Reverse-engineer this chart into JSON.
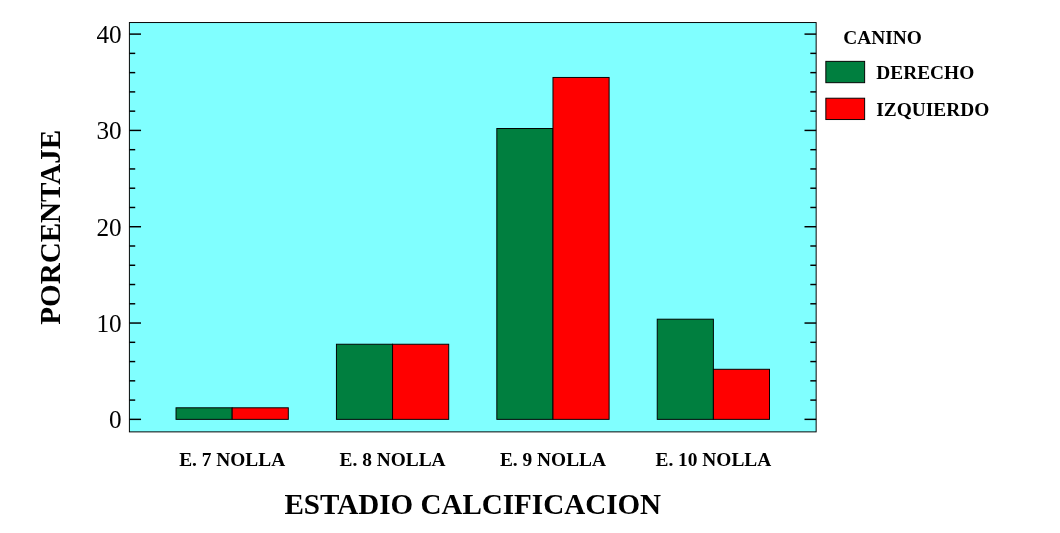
{
  "chart_data": {
    "type": "bar",
    "xlabel": "ESTADIO CALCIFICACION",
    "ylabel": "PORCENTAJE",
    "legend_title": "CANINO",
    "categories": [
      "E. 7 NOLLA",
      "E. 8 NOLLA",
      "E. 9 NOLLA",
      "E. 10 NOLLA"
    ],
    "series": [
      {
        "name": "DERECHO",
        "color": "#007f3f",
        "values": [
          1.2,
          7.8,
          30.2,
          10.4
        ]
      },
      {
        "name": "IZQUIERDO",
        "color": "#ff0000",
        "values": [
          1.2,
          7.8,
          35.5,
          5.2
        ]
      }
    ],
    "ylim": [
      -1.3,
      41.2
    ],
    "yticks": [
      0,
      {
        "value": 2,
        "label": null
      },
      {
        "value": 4,
        "label": null
      },
      {
        "value": 6,
        "label": null
      },
      {
        "value": 8,
        "label": null
      },
      10,
      {
        "value": 12,
        "label": null
      },
      {
        "value": 14,
        "label": null
      },
      {
        "value": 16,
        "label": null
      },
      {
        "value": 18,
        "label": null
      },
      20,
      {
        "value": 22,
        "label": null
      },
      {
        "value": 24,
        "label": null
      },
      {
        "value": 26,
        "label": null
      },
      {
        "value": 28,
        "label": null
      },
      30,
      {
        "value": 32,
        "label": null
      },
      {
        "value": 34,
        "label": null
      },
      {
        "value": 36,
        "label": null
      },
      {
        "value": 38,
        "label": null
      },
      40
    ],
    "grid": false,
    "legend": "top right"
  }
}
